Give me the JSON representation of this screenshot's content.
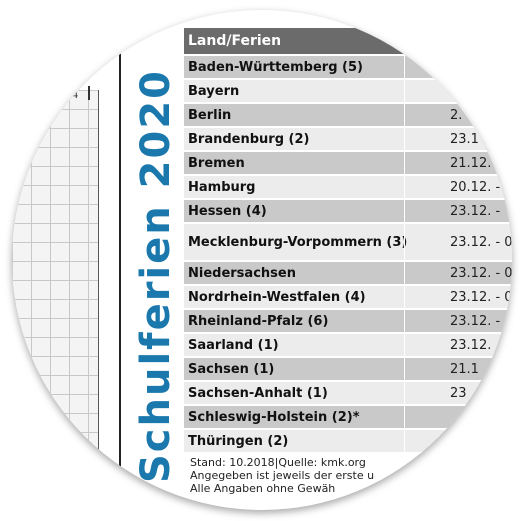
{
  "title": "Schulferien  2020",
  "grid": {
    "tick_label": "4"
  },
  "table": {
    "header": "Land/Ferien",
    "rows": [
      {
        "land": "Baden-Württemberg (5)",
        "date": ""
      },
      {
        "land": "Bayern",
        "date": ""
      },
      {
        "land": "Berlin",
        "date": "2."
      },
      {
        "land": "Brandenburg (2)",
        "date": "23.1"
      },
      {
        "land": "Bremen",
        "date": "21.12."
      },
      {
        "land": "Hamburg",
        "date": "20.12. -"
      },
      {
        "land": "Hessen (4)",
        "date": "23.12. -"
      },
      {
        "land": "Mecklenburg-Vorpommern (3)",
        "date": "23.12. - 0"
      },
      {
        "land": "Niedersachsen",
        "date": "23.12. - 0"
      },
      {
        "land": "Nordrhein-Westfalen (4)",
        "date": "23.12. - 0"
      },
      {
        "land": "Rheinland-Pfalz (6)",
        "date": "23.12. -"
      },
      {
        "land": "Saarland (1)",
        "date": "23.12."
      },
      {
        "land": "Sachsen (1)",
        "date": "21.1"
      },
      {
        "land": "Sachsen-Anhalt (1)",
        "date": "23"
      },
      {
        "land": "Schleswig-Holstein (2)*",
        "date": ""
      },
      {
        "land": "Thüringen (2)",
        "date": ""
      }
    ]
  },
  "footer": {
    "line1": "Stand: 10.2018|Quelle: kmk.org",
    "line2": "Angegeben ist jeweils der erste u",
    "line3": "Alle Angaben ohne Gewäh"
  },
  "colors": {
    "title_blue": "#1a78ad",
    "header_gray": "#6b6b6b",
    "row_dark": "#c9c9c9",
    "row_light": "#ececec"
  }
}
